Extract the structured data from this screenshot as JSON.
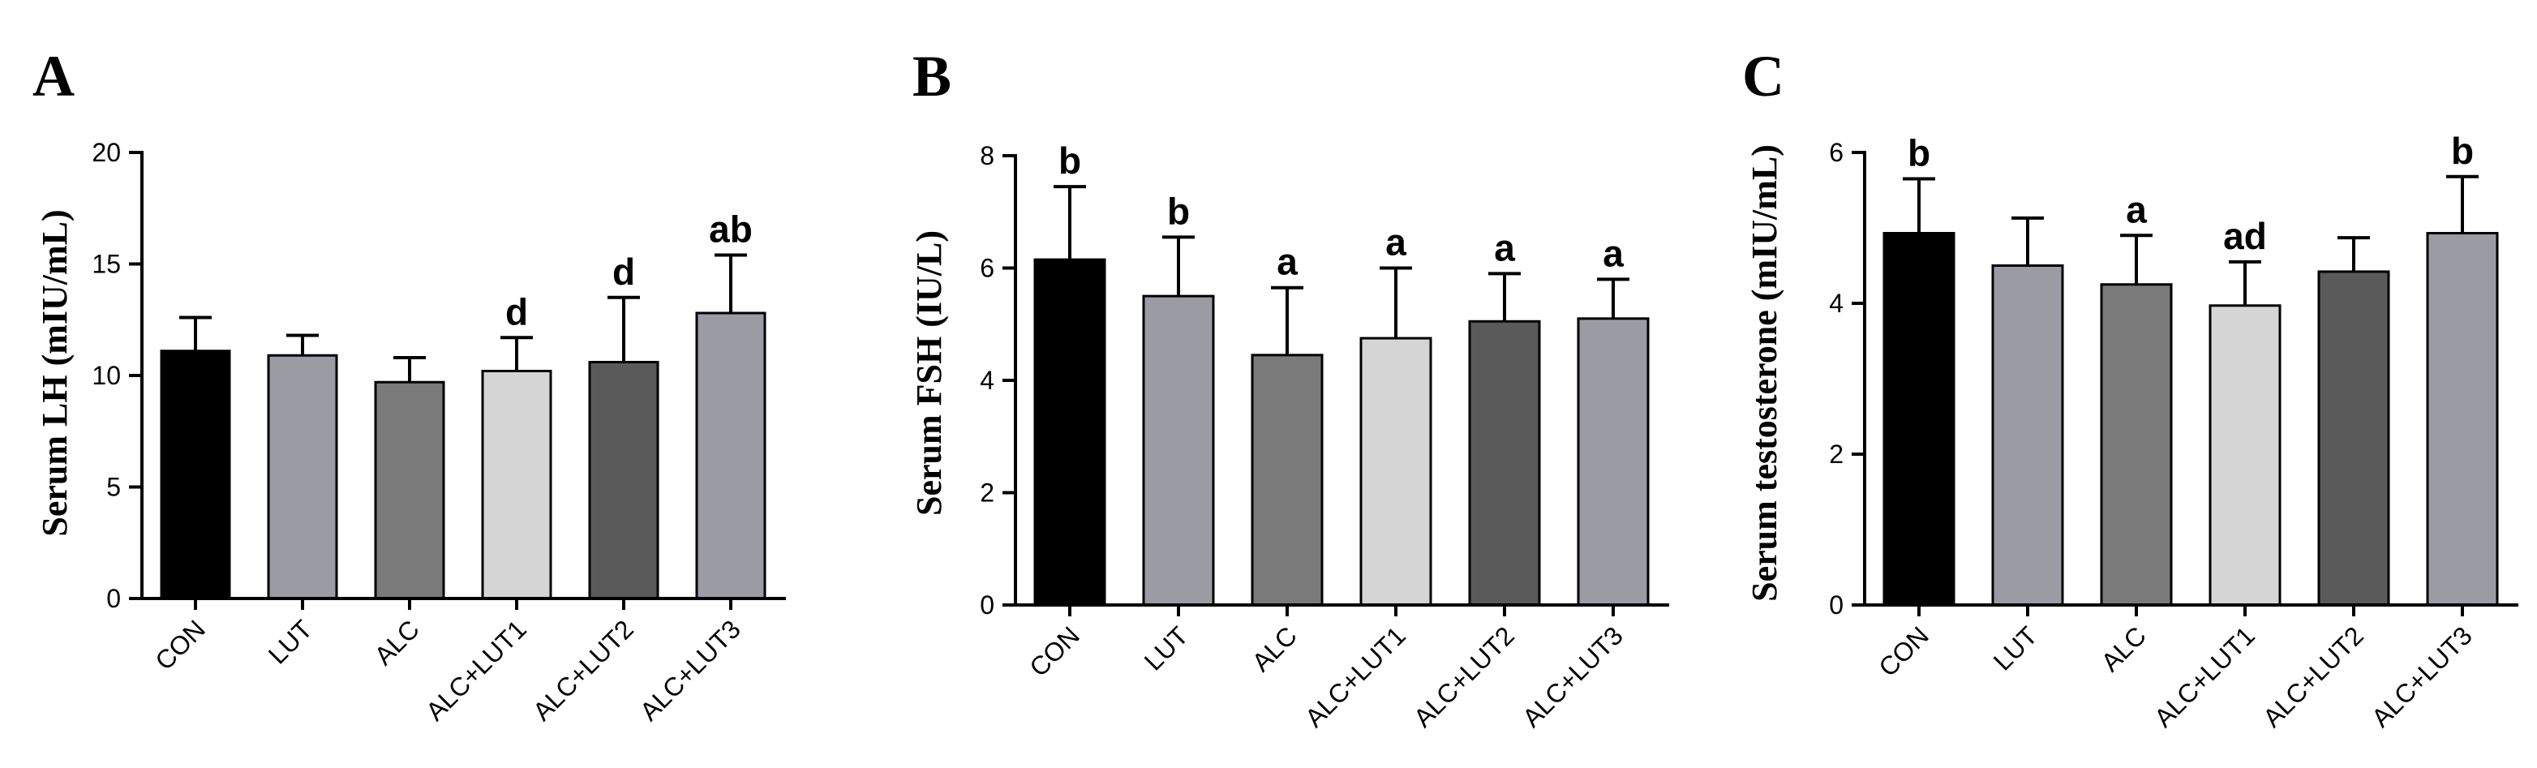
{
  "chart_data": [
    {
      "type": "bar",
      "panel": "A",
      "title": "",
      "xlabel": "",
      "ylabel": "Serum LH (mIU/mL)",
      "ylim": [
        0,
        20
      ],
      "yticks": [
        0,
        5,
        10,
        15,
        20
      ],
      "categories": [
        "CON",
        "LUT",
        "ALC",
        "ALC+LUT1",
        "ALC+LUT2",
        "ALC+LUT3"
      ],
      "values": [
        11.1,
        10.9,
        9.7,
        10.2,
        10.6,
        12.8
      ],
      "errors": [
        1.5,
        0.9,
        1.1,
        1.5,
        2.9,
        2.6
      ],
      "significance": [
        "",
        "",
        "",
        "d",
        "d",
        "ab"
      ],
      "colors": [
        "#000000",
        "#9b9ba3",
        "#7a7a7a",
        "#d5d5d5",
        "#5a5a5a",
        "#9b9ba3"
      ]
    },
    {
      "type": "bar",
      "panel": "B",
      "title": "",
      "xlabel": "",
      "ylabel": "Serum FSH (IU/L)",
      "ylim": [
        0,
        8
      ],
      "yticks": [
        0,
        2,
        4,
        6,
        8
      ],
      "categories": [
        "CON",
        "LUT",
        "ALC",
        "ALC+LUT1",
        "ALC+LUT2",
        "ALC+LUT3"
      ],
      "values": [
        6.15,
        5.5,
        4.45,
        4.75,
        5.05,
        5.1
      ],
      "errors": [
        1.3,
        1.05,
        1.2,
        1.25,
        0.85,
        0.7
      ],
      "significance": [
        "b",
        "b",
        "a",
        "a",
        "a",
        "a"
      ],
      "colors": [
        "#000000",
        "#9b9ba3",
        "#7a7a7a",
        "#d5d5d5",
        "#5a5a5a",
        "#9b9ba3"
      ]
    },
    {
      "type": "bar",
      "panel": "C",
      "title": "",
      "xlabel": "",
      "ylabel": "Serum testosterone (mIU/mL)",
      "ylim": [
        0,
        6
      ],
      "yticks": [
        0,
        2,
        4,
        6
      ],
      "categories": [
        "CON",
        "LUT",
        "ALC",
        "ALC+LUT1",
        "ALC+LUT2",
        "ALC+LUT3"
      ],
      "values": [
        4.93,
        4.5,
        4.25,
        3.97,
        4.42,
        4.93
      ],
      "errors": [
        0.72,
        0.63,
        0.65,
        0.58,
        0.45,
        0.75
      ],
      "significance": [
        "b",
        "",
        "a",
        "ad",
        "",
        "b"
      ],
      "colors": [
        "#000000",
        "#9b9ba3",
        "#7a7a7a",
        "#d5d5d5",
        "#5a5a5a",
        "#9b9ba3"
      ]
    }
  ]
}
